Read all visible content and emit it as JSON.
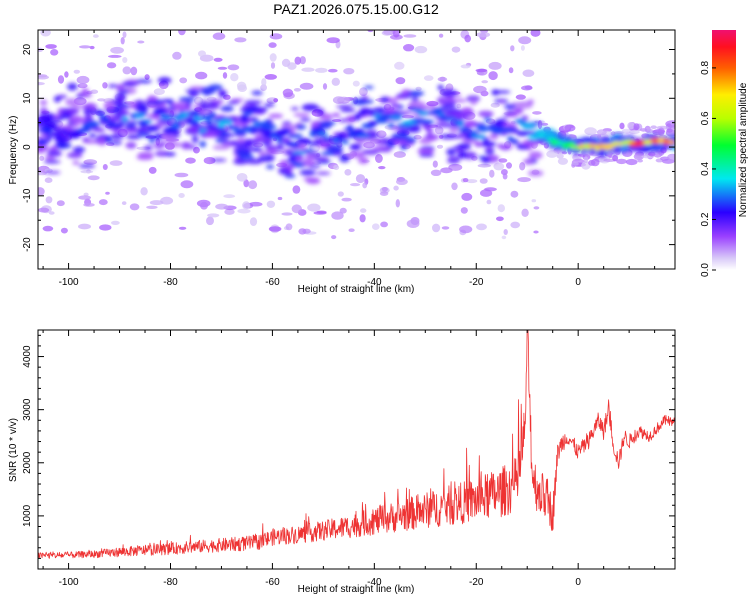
{
  "figure_title": "PAZ1.2026.075.15.00.G12",
  "chart_data": [
    {
      "type": "heatmap",
      "title": "",
      "xlabel": "Height of straight line (km)",
      "ylabel": "Frequency (Hz)",
      "xlim": [
        -106,
        19
      ],
      "ylim": [
        -25,
        24
      ],
      "xticks": [
        -100,
        -80,
        -60,
        -40,
        -20,
        0
      ],
      "xtick_labels": [
        "-100",
        "-80",
        "-60",
        "-40",
        "-20",
        "0"
      ],
      "yticks": [
        -20,
        -10,
        0,
        10,
        20
      ],
      "ytick_labels": [
        "-20",
        "-10",
        "0",
        "10",
        "20"
      ],
      "colorbar": {
        "label": "Normalized spectral amplitude",
        "range": [
          0,
          0.95
        ],
        "ticks": [
          0.0,
          0.2,
          0.4,
          0.6,
          0.8
        ],
        "tick_labels": [
          "0.0",
          "0.2",
          "0.4",
          "0.6",
          "0.8"
        ]
      },
      "ridge": {
        "height_km": [
          -106,
          -100,
          -95,
          -90,
          -85,
          -80,
          -75,
          -70,
          -65,
          -60,
          -57,
          -55,
          -50,
          -45,
          -40,
          -35,
          -30,
          -25,
          -20,
          -15,
          -10,
          -7,
          -5,
          -3,
          0,
          5,
          10,
          15,
          19
        ],
        "frequency_hz": [
          3,
          4,
          5,
          6,
          6,
          5.5,
          5,
          5,
          4,
          2.5,
          1,
          0.5,
          1.5,
          3,
          5,
          6,
          5.5,
          4.5,
          4,
          3.5,
          3,
          2.5,
          1.5,
          0.5,
          0,
          0.2,
          0.8,
          1,
          1
        ],
        "peak_amplitude": [
          0.25,
          0.25,
          0.3,
          0.3,
          0.3,
          0.3,
          0.32,
          0.35,
          0.3,
          0.28,
          0.3,
          0.3,
          0.3,
          0.3,
          0.3,
          0.32,
          0.3,
          0.3,
          0.3,
          0.32,
          0.35,
          0.4,
          0.45,
          0.5,
          0.7,
          0.75,
          0.8,
          0.88,
          0.85
        ]
      }
    },
    {
      "type": "line",
      "title": "",
      "xlabel": "Height of straight line (km)",
      "ylabel": "SNR (10 * v/v)",
      "xlim": [
        -106,
        19
      ],
      "ylim": [
        0,
        4500
      ],
      "xticks": [
        -100,
        -80,
        -60,
        -40,
        -20,
        0
      ],
      "xtick_labels": [
        "-100",
        "-80",
        "-60",
        "-40",
        "-20",
        "0"
      ],
      "yticks": [
        1000,
        2000,
        3000,
        4000
      ],
      "ytick_labels": [
        "1000",
        "2000",
        "3000",
        "4000"
      ],
      "series": [
        {
          "name": "SNR",
          "color": "#ee3333",
          "x": [
            -106,
            -100,
            -95,
            -90,
            -85,
            -80,
            -75,
            -70,
            -65,
            -62,
            -60,
            -55,
            -50,
            -45,
            -40,
            -35,
            -30,
            -25,
            -20,
            -15,
            -12,
            -10.5,
            -10,
            -9,
            -8,
            -7,
            -6,
            -5,
            -4,
            -3,
            -2,
            0,
            2,
            4,
            5,
            6,
            7,
            8,
            9,
            10,
            12,
            14,
            16,
            17,
            19
          ],
          "y": [
            250,
            260,
            280,
            320,
            350,
            380,
            420,
            450,
            480,
            520,
            600,
            650,
            720,
            800,
            900,
            1000,
            1100,
            1200,
            1300,
            1450,
            1600,
            2500,
            4450,
            1800,
            1500,
            1400,
            1300,
            1000,
            2200,
            2400,
            2500,
            2200,
            2400,
            2800,
            2600,
            3000,
            2300,
            2000,
            2500,
            2400,
            2600,
            2500,
            2700,
            2800,
            2750
          ],
          "noise_amplitude": [
            60,
            60,
            70,
            90,
            100,
            110,
            120,
            130,
            140,
            150,
            160,
            170,
            190,
            220,
            260,
            300,
            340,
            380,
            420,
            480,
            520,
            600,
            600,
            500,
            450,
            420,
            400,
            350,
            200,
            180,
            160,
            150,
            150,
            160,
            170,
            180,
            170,
            160,
            150,
            140,
            120,
            110,
            100,
            100,
            100
          ]
        }
      ]
    }
  ]
}
